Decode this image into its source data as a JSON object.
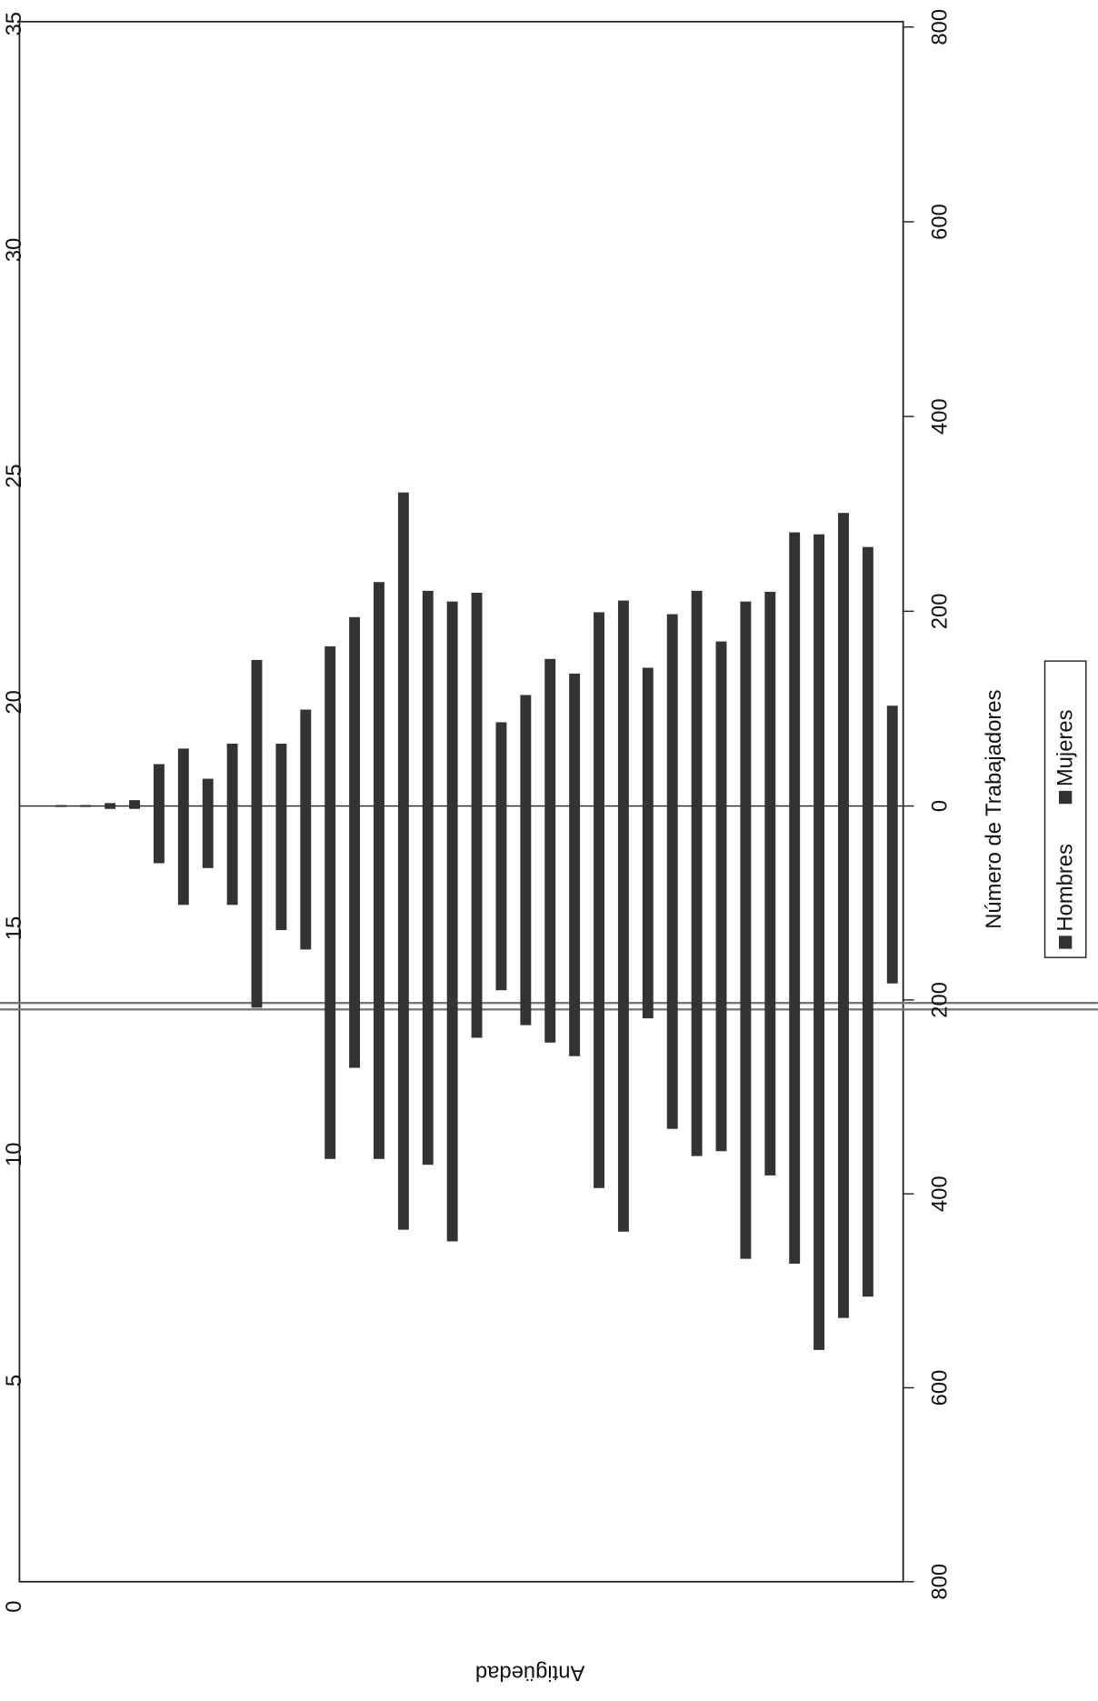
{
  "chart_data": {
    "type": "bar",
    "x_label": "Antigüedad",
    "y_label": "Número de Trabajadores",
    "categories": [
      null,
      null,
      null,
      null,
      null,
      null,
      null,
      null,
      null,
      null,
      null,
      null,
      null,
      null,
      null,
      null,
      null,
      null,
      null,
      null,
      null,
      null,
      null,
      null,
      null,
      null,
      null,
      null,
      null,
      null,
      null,
      null,
      null,
      null,
      null
    ],
    "series": [
      {
        "name": "Hombres",
        "color": "#333333",
        "axis": "y2",
        "values": [
          183,
          506,
          528,
          561,
          472,
          381,
          467,
          356,
          361,
          333,
          219,
          439,
          394,
          258,
          244,
          226,
          190,
          239,
          449,
          370,
          437,
          364,
          270,
          364,
          148,
          128,
          208,
          102,
          64,
          102,
          59,
          3,
          3,
          1,
          1
        ]
      },
      {
        "name": "Mujeres",
        "color": "#333333",
        "values": [
          103,
          266,
          301,
          279,
          281,
          220,
          210,
          169,
          221,
          197,
          142,
          211,
          199,
          136,
          151,
          114,
          86,
          219,
          210,
          221,
          322,
          230,
          194,
          164,
          99,
          64,
          150,
          64,
          28,
          59,
          43,
          6,
          3,
          1,
          1
        ]
      }
    ],
    "xlim": [
      0,
      35
    ],
    "xticks": [
      0,
      5,
      10,
      15,
      20,
      25,
      30,
      35
    ],
    "ylim": [
      0,
      800
    ],
    "yticks": [
      0,
      200,
      400,
      600,
      800
    ],
    "y2lim": [
      0,
      800
    ],
    "y2ticks": [
      200,
      400,
      600,
      800
    ]
  }
}
